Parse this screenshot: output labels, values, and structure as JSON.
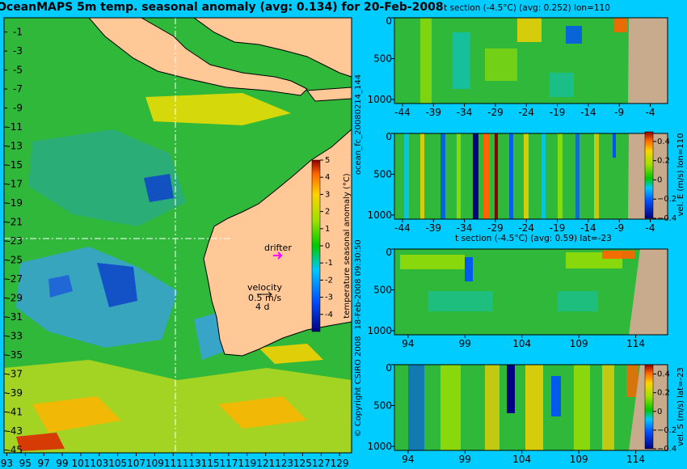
{
  "title": "OceanMAPS 5m temp. seasonal anomaly (avg: 0.134) for 20-Feb-2008",
  "colors": {
    "background": "#00ccff",
    "land": "#ffc896",
    "seabed": "#c8aa8c",
    "drifter": "#ff00ff",
    "guide_line": "#ffffff"
  },
  "side_text": {
    "run_id": "ocean_fc_20080214_144",
    "issued": "18-Feb-2008 09:30:50",
    "copyright": "© Copyright CSIRO 2008"
  },
  "map_labels": {
    "drifter": "drifter",
    "velocity": "velocity",
    "velocity_speed": "0.5 m/s",
    "velocity_days": "4 d"
  },
  "chart_data": [
    {
      "type": "heatmap",
      "id": "map",
      "x_ticks": [
        93,
        95,
        97,
        99,
        101,
        103,
        105,
        107,
        109,
        111,
        113,
        115,
        117,
        119,
        121,
        123,
        125,
        127,
        129
      ],
      "x_tick_labels": [
        "93",
        "95",
        "97",
        "99",
        "101",
        "103",
        "105",
        "107",
        "109",
        "111",
        "113",
        "115",
        "117",
        "119",
        "121",
        "123",
        "125",
        "127",
        "129"
      ],
      "xlim": [
        92.7,
        130.3
      ],
      "y_ticks": [
        -1,
        -3,
        -5,
        -7,
        -9,
        -11,
        -13,
        -15,
        -17,
        -19,
        -21,
        -23,
        -25,
        -27,
        -29,
        -31,
        -33,
        -35,
        -37,
        -39,
        -41,
        -43,
        -45
      ],
      "y_tick_labels": [
        "-1",
        "-3",
        "-5",
        "-7",
        "-9",
        "-11",
        "-13",
        "-15",
        "-17",
        "-19",
        "-21",
        "-23",
        "-25",
        "-27",
        "-29",
        "-31",
        "-33",
        "-35",
        "-37",
        "-39",
        "-41",
        "-43",
        "-45"
      ],
      "ylim": [
        -45.3,
        0.5
      ],
      "section_lon": 110,
      "section_lat": -23,
      "colorbar": {
        "label": "temperature seasonal anomaly (°C)",
        "min": -5,
        "max": 5,
        "ticks": [
          5,
          4,
          3,
          2,
          1,
          0,
          -1,
          -2,
          -3,
          -4
        ]
      }
    },
    {
      "type": "heatmap",
      "id": "t_section_lon110",
      "title": "t section (-4.5°C) (avg: 0.252) lon=110",
      "x_ticks": [
        -44,
        -39,
        -34,
        -29,
        -24,
        -19,
        -14,
        -9,
        -4
      ],
      "x_tick_labels": [
        "-44",
        "-39",
        "-34",
        "-29",
        "-24",
        "-19",
        "-14",
        "-9",
        "-4"
      ],
      "xlim": [
        -45.3,
        -1.2
      ],
      "y_ticks": [
        0,
        500,
        1000
      ],
      "y_tick_labels": [
        "0",
        "500",
        "1000"
      ],
      "ylim": [
        0,
        1050
      ],
      "coast": -8
    },
    {
      "type": "heatmap",
      "id": "vel_e_lon110",
      "x_ticks": [
        -44,
        -39,
        -34,
        -29,
        -24,
        -19,
        -14,
        -9,
        -4
      ],
      "x_tick_labels": [
        "-44",
        "-39",
        "-34",
        "-29",
        "-24",
        "-19",
        "-14",
        "-9",
        "-4"
      ],
      "xlim": [
        -45.3,
        -1.2
      ],
      "y_ticks": [
        0,
        500,
        1000
      ],
      "y_tick_labels": [
        "0",
        "500",
        "1000"
      ],
      "ylim": [
        0,
        1050
      ],
      "coast": -8,
      "colorbar": {
        "label": "vel. E (m/s) lon=110",
        "min": -0.4,
        "max": 0.5,
        "ticks": [
          0.4,
          0.2,
          0,
          -0.2,
          -0.4
        ],
        "tick_labels": [
          "0.4",
          "0.2",
          "0",
          "−0.2",
          "−0.4"
        ]
      }
    },
    {
      "type": "heatmap",
      "id": "t_section_lat23",
      "title": "t section (-4.5°C) (avg: 0.59) lat=-23",
      "x_ticks": [
        94,
        99,
        104,
        109,
        114
      ],
      "x_tick_labels": [
        "94",
        "99",
        "104",
        "109",
        "114"
      ],
      "xlim": [
        92.8,
        116.8
      ],
      "y_ticks": [
        0,
        500,
        1000
      ],
      "y_tick_labels": [
        "0",
        "500",
        "1000"
      ],
      "ylim": [
        0,
        1050
      ],
      "coast": 113.7
    },
    {
      "type": "heatmap",
      "id": "vel_s_lat23",
      "x_ticks": [
        94,
        99,
        104,
        109,
        114
      ],
      "x_tick_labels": [
        "94",
        "99",
        "104",
        "109",
        "114"
      ],
      "xlim": [
        92.8,
        116.8
      ],
      "y_ticks": [
        0,
        500,
        1000
      ],
      "y_tick_labels": [
        "0",
        "500",
        "1000"
      ],
      "ylim": [
        0,
        1050
      ],
      "coast": 113.7,
      "colorbar": {
        "label": "vel. S (m/s) lat=-23",
        "min": -0.4,
        "max": 0.5,
        "ticks": [
          0.4,
          0.2,
          0,
          -0.2,
          -0.4
        ],
        "tick_labels": [
          "0.4",
          "0.2",
          "0",
          "−0.2",
          "−0.4"
        ]
      }
    }
  ]
}
